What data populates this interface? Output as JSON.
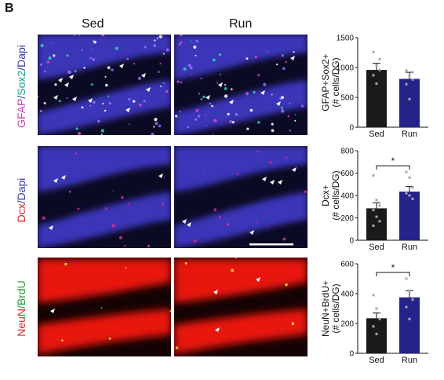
{
  "panel_letter": "B",
  "columns": {
    "left": "Sed",
    "right": "Run"
  },
  "rows": [
    {
      "stain": [
        {
          "text": "GFAP",
          "color": "#c03fb0"
        },
        {
          "text": "/",
          "color": "#3a3aa8"
        },
        {
          "text": "Sox2",
          "color": "#1aa28a"
        },
        {
          "text": "/",
          "color": "#3a3aa8"
        },
        {
          "text": "Dapi",
          "color": "#3a3aa8"
        }
      ]
    },
    {
      "stain": [
        {
          "text": "Dcx",
          "color": "#d8262c"
        },
        {
          "text": "/",
          "color": "#3a3aa8"
        },
        {
          "text": "Dapi",
          "color": "#3a3aa8"
        }
      ]
    },
    {
      "stain": [
        {
          "text": "NeuN",
          "color": "#d8262c"
        },
        {
          "text": "/",
          "color": "#2e9a3a"
        },
        {
          "text": "BrdU",
          "color": "#2e9a3a"
        }
      ]
    }
  ],
  "colors": {
    "sed_bar": "#1a1a1a",
    "run_bar": "#25228a",
    "dapi_blue": "#3b35b8",
    "neun_red": "#e8160f"
  },
  "chart_data": [
    {
      "type": "bar",
      "categories": [
        "Sed",
        "Run"
      ],
      "values": [
        960,
        810
      ],
      "errors": [
        110,
        110
      ],
      "points": [
        [
          1260,
          1040,
          960,
          870,
          730,
          1140
        ],
        [
          950,
          860,
          800,
          720,
          470,
          920
        ]
      ],
      "ylabel_lines": [
        "GFAP+Sox2+",
        "(# cells/DG)"
      ],
      "ylim": [
        0,
        1500
      ],
      "yticks": [
        0,
        500,
        1000,
        1500
      ],
      "significance": ""
    },
    {
      "type": "bar",
      "categories": [
        "Sed",
        "Run"
      ],
      "values": [
        285,
        435
      ],
      "errors": [
        50,
        45
      ],
      "points": [
        [
          580,
          360,
          310,
          270,
          210,
          170,
          130
        ],
        [
          610,
          560,
          470,
          420,
          400,
          370
        ]
      ],
      "ylabel_lines": [
        "Dcx+",
        "(# cells/DG)"
      ],
      "ylim": [
        0,
        800
      ],
      "yticks": [
        0,
        200,
        400,
        600,
        800
      ],
      "significance": "*"
    },
    {
      "type": "bar",
      "categories": [
        "Sed",
        "Run"
      ],
      "values": [
        235,
        375
      ],
      "errors": [
        35,
        45
      ],
      "points": [
        [
          390,
          300,
          230,
          180,
          130
        ],
        [
          500,
          420,
          360,
          310,
          230
        ]
      ],
      "ylabel_lines": [
        "NeuN+BrdU+",
        "(# cells/DG)"
      ],
      "ylim": [
        0,
        600
      ],
      "yticks": [
        0,
        200,
        400,
        600
      ],
      "significance": "*"
    }
  ]
}
